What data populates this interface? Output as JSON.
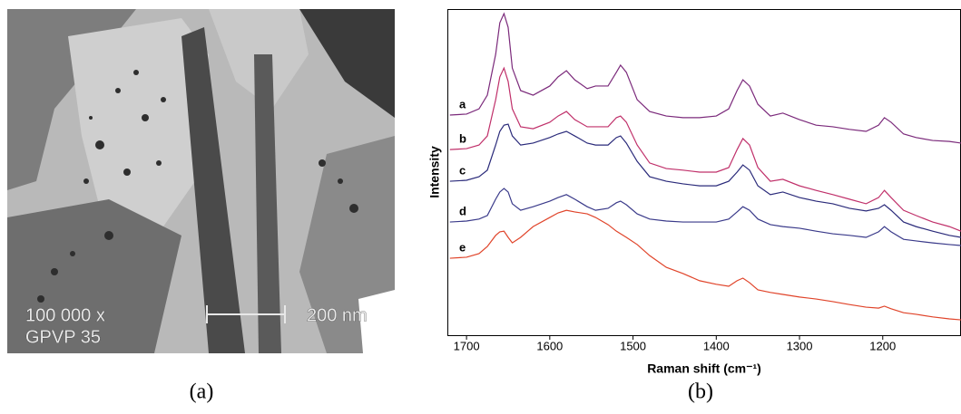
{
  "image": {
    "magnification": "100 000 x",
    "sample": "GPVP 35",
    "scale_bar": "200 nm"
  },
  "captions": [
    "(a)",
    "(b)"
  ],
  "chart_data": {
    "type": "line",
    "xlabel": "Raman shift (cm⁻¹)",
    "ylabel": "Intensity",
    "xlim": [
      1723,
      1106
    ],
    "xticks": [
      1700,
      1600,
      1500,
      1400,
      1300,
      1200
    ],
    "ylim": [
      0,
      100
    ],
    "x": [
      1720,
      1700,
      1685,
      1675,
      1665,
      1660,
      1655,
      1650,
      1645,
      1635,
      1620,
      1600,
      1590,
      1580,
      1570,
      1555,
      1545,
      1530,
      1520,
      1515,
      1508,
      1495,
      1480,
      1460,
      1440,
      1420,
      1400,
      1385,
      1375,
      1368,
      1360,
      1350,
      1335,
      1320,
      1300,
      1280,
      1260,
      1240,
      1220,
      1205,
      1198,
      1190,
      1175,
      1160,
      1140,
      1120,
      1106
    ],
    "series": [
      {
        "name": "a",
        "color": "#7b2a7b",
        "values": [
          67.5,
          67.8,
          69.4,
          73.6,
          86.1,
          95.8,
          98.6,
          94.4,
          81.9,
          75,
          73.6,
          76.4,
          79.2,
          81.1,
          78.3,
          75.6,
          76.4,
          76.4,
          80.6,
          82.8,
          80.6,
          72.2,
          68.6,
          67.2,
          66.7,
          66.7,
          67.2,
          69.4,
          75,
          78.3,
          76.4,
          70.8,
          67.2,
          68.1,
          66.1,
          64.4,
          63.9,
          63.1,
          62.5,
          64.4,
          66.7,
          65.3,
          61.7,
          60.6,
          59.7,
          59.4,
          58.9
        ]
      },
      {
        "name": "b",
        "color": "#c0306a",
        "values": [
          56.9,
          57.2,
          58.3,
          61.1,
          72.2,
          79.2,
          81.9,
          77.8,
          69.4,
          63.9,
          63.3,
          65.3,
          67.2,
          68.6,
          66.1,
          63.9,
          63.9,
          63.9,
          66.7,
          67.2,
          65.3,
          58.3,
          52.8,
          51.1,
          50.6,
          50,
          50,
          51.4,
          56.9,
          60.3,
          58.3,
          51.4,
          47.2,
          47.8,
          45.8,
          44.4,
          43.1,
          41.7,
          40.3,
          42.2,
          44.4,
          42.2,
          38.3,
          36.7,
          34.7,
          33.3,
          31.9
        ]
      },
      {
        "name": "c",
        "color": "#2a2a7a",
        "values": [
          47.2,
          47.5,
          48.6,
          50.6,
          58.3,
          62.5,
          64.4,
          64.7,
          61.1,
          58.3,
          58.9,
          60.6,
          61.7,
          62.5,
          61.1,
          58.9,
          58.3,
          58.3,
          60.6,
          61.1,
          58.9,
          53.3,
          48.6,
          47.2,
          46.4,
          45.8,
          45.8,
          47.2,
          50,
          52.2,
          50.6,
          45.8,
          43.1,
          43.9,
          42.2,
          41.1,
          40.3,
          38.9,
          38.1,
          38.9,
          40,
          38.3,
          34.7,
          33.3,
          31.9,
          30.6,
          30
        ]
      },
      {
        "name": "d",
        "color": "#3a3a8a",
        "values": [
          34.7,
          35,
          35.6,
          36.7,
          41.7,
          43.9,
          45,
          43.9,
          40.3,
          38.3,
          39.4,
          41.1,
          42.2,
          43.1,
          41.7,
          39.4,
          38.3,
          38.9,
          40.6,
          41.1,
          40,
          37.2,
          35.6,
          35,
          34.7,
          34.7,
          34.7,
          35.6,
          37.8,
          39.4,
          38.3,
          35.6,
          33.9,
          33.3,
          32.8,
          31.9,
          31.1,
          30.6,
          30,
          31.7,
          33.3,
          31.7,
          29.4,
          28.9,
          28.3,
          27.8,
          27.5
        ]
      },
      {
        "name": "e",
        "color": "#e0442a",
        "values": [
          23.6,
          23.9,
          25,
          27.2,
          30.6,
          31.7,
          31.9,
          30,
          28.3,
          30,
          33.3,
          36.1,
          37.5,
          38.3,
          37.8,
          37.2,
          36.1,
          33.9,
          31.9,
          31.1,
          30,
          27.8,
          24.4,
          20.8,
          18.9,
          16.7,
          15.6,
          15,
          16.7,
          17.5,
          16.1,
          13.9,
          13.1,
          12.5,
          11.7,
          11.1,
          10.3,
          9.4,
          8.6,
          8.3,
          8.9,
          8.1,
          6.9,
          6.4,
          5.6,
          5,
          4.7
        ]
      }
    ]
  }
}
